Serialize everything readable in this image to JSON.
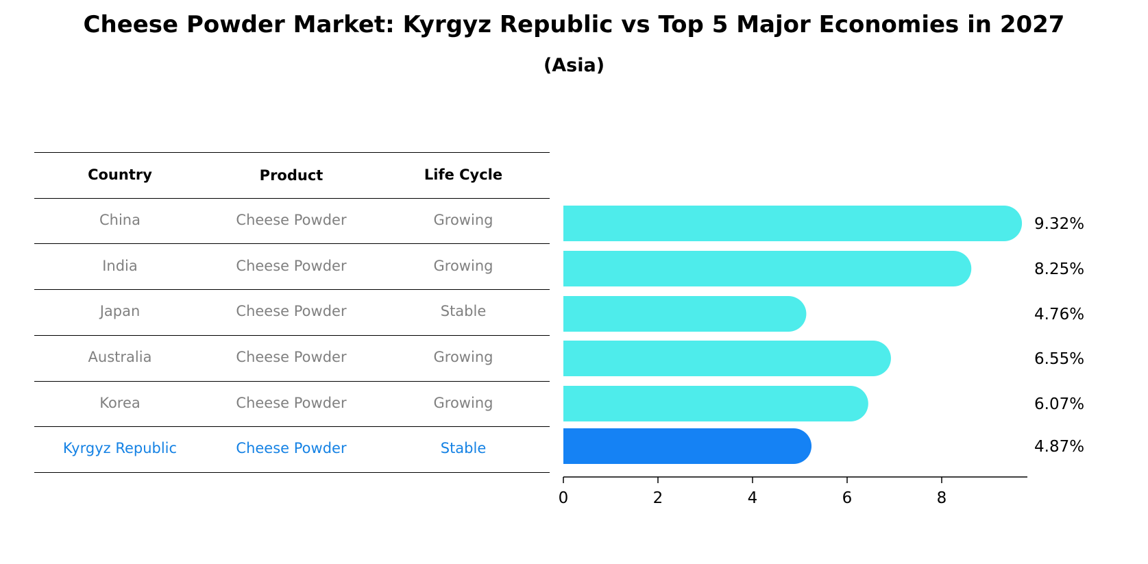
{
  "title": "Cheese Powder Market: Kyrgyz Republic vs Top 5 Major Economies in 2027",
  "subtitle": "(Asia)",
  "table": {
    "headers": [
      "Country",
      "Product",
      "Life Cycle"
    ],
    "rows": [
      {
        "country": "China",
        "product": "Cheese Powder",
        "life_cycle": "Growing"
      },
      {
        "country": "India",
        "product": "Cheese Powder",
        "life_cycle": "Growing"
      },
      {
        "country": "Japan",
        "product": "Cheese Powder",
        "life_cycle": "Stable"
      },
      {
        "country": "Australia",
        "product": "Cheese Powder",
        "life_cycle": "Growing"
      },
      {
        "country": "Korea",
        "product": "Cheese Powder",
        "life_cycle": "Growing"
      },
      {
        "country": "Kyrgyz Republic",
        "product": "Cheese Powder",
        "life_cycle": "Stable"
      }
    ]
  },
  "colors": {
    "bar": "#4eeceb",
    "highlight_bar": "#1582f4",
    "highlight_text": "#1582e4",
    "row_text": "#808080"
  },
  "chart_data": {
    "type": "bar",
    "orientation": "horizontal",
    "categories": [
      "China",
      "India",
      "Japan",
      "Australia",
      "Korea",
      "Kyrgyz Republic"
    ],
    "values": [
      9.32,
      8.25,
      4.76,
      6.55,
      6.07,
      4.87
    ],
    "value_labels": [
      "9.32%",
      "8.25%",
      "4.76%",
      "6.55%",
      "6.07%",
      "4.87%"
    ],
    "highlight": "Kyrgyz Republic",
    "xlim": [
      0,
      9.8
    ],
    "xticks": [
      0,
      2,
      4,
      6,
      8
    ],
    "xtick_labels": [
      "0",
      "2",
      "4",
      "6",
      "8"
    ],
    "xlabel": "",
    "ylabel": "",
    "grid": false
  }
}
